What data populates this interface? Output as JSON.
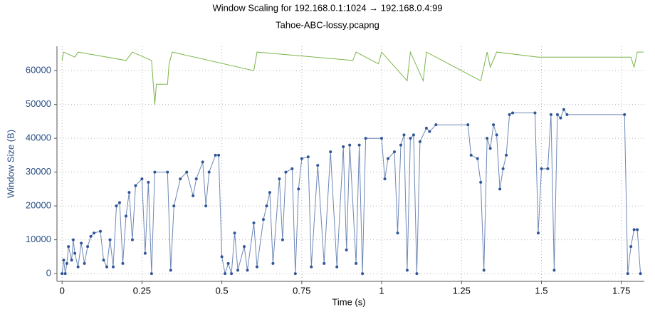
{
  "chart_data": {
    "type": "line",
    "title": "Window Scaling for 192.168.0.1:1024 → 192.168.0.4:99",
    "subtitle": "Tahoe-ABC-lossy.pcapng",
    "x_label": "Time (s)",
    "y_label": "Window Size (B)",
    "xlim": [
      -0.016,
      1.822
    ],
    "ylim": [
      -2300,
      67200
    ],
    "xticks": [
      0,
      0.25,
      0.5,
      0.75,
      1,
      1.25,
      1.5,
      1.75
    ],
    "yticks": [
      0,
      10000,
      20000,
      30000,
      40000,
      50000,
      60000
    ],
    "grid": true,
    "series": [
      {
        "color": "#7ab648",
        "markers": false,
        "x": [
          0,
          0.005,
          0.04,
          0.05,
          0.2,
          0.22,
          0.28,
          0.29,
          0.295,
          0.33,
          0.335,
          0.345,
          0.6,
          0.61,
          0.91,
          0.92,
          0.99,
          1.0,
          1.08,
          1.09,
          1.13,
          1.14,
          1.31,
          1.33,
          1.34,
          1.36,
          1.49,
          1.78,
          1.79,
          1.8,
          1.82
        ],
        "values": [
          63000,
          65500,
          64000,
          65500,
          63000,
          65500,
          63000,
          50000,
          56000,
          56000,
          62000,
          65500,
          60000,
          65500,
          63000,
          65500,
          62000,
          65500,
          57000,
          65500,
          57000,
          65500,
          57000,
          65500,
          61000,
          65500,
          64000,
          64000,
          61000,
          65500,
          65500
        ]
      },
      {
        "color": "#2f5597",
        "markers": true,
        "x": [
          0,
          0.005,
          0.01,
          0.015,
          0.02,
          0.03,
          0.035,
          0.04,
          0.05,
          0.06,
          0.07,
          0.08,
          0.09,
          0.1,
          0.12,
          0.13,
          0.14,
          0.15,
          0.16,
          0.17,
          0.18,
          0.19,
          0.2,
          0.21,
          0.22,
          0.23,
          0.25,
          0.26,
          0.27,
          0.28,
          0.29,
          0.33,
          0.34,
          0.35,
          0.37,
          0.39,
          0.41,
          0.42,
          0.44,
          0.45,
          0.46,
          0.48,
          0.49,
          0.5,
          0.51,
          0.52,
          0.53,
          0.54,
          0.55,
          0.57,
          0.58,
          0.6,
          0.61,
          0.63,
          0.64,
          0.65,
          0.66,
          0.68,
          0.69,
          0.7,
          0.72,
          0.73,
          0.74,
          0.75,
          0.77,
          0.78,
          0.8,
          0.82,
          0.84,
          0.86,
          0.88,
          0.89,
          0.9,
          0.92,
          0.93,
          0.94,
          0.95,
          1.0,
          1.01,
          1.02,
          1.04,
          1.05,
          1.06,
          1.07,
          1.08,
          1.09,
          1.1,
          1.11,
          1.12,
          1.14,
          1.15,
          1.17,
          1.27,
          1.28,
          1.3,
          1.31,
          1.32,
          1.33,
          1.34,
          1.35,
          1.36,
          1.37,
          1.38,
          1.39,
          1.4,
          1.41,
          1.48,
          1.49,
          1.5,
          1.52,
          1.53,
          1.54,
          1.55,
          1.56,
          1.57,
          1.58,
          1.76,
          1.77,
          1.78,
          1.79,
          1.8,
          1.81
        ],
        "values": [
          0,
          4000,
          0,
          3000,
          8000,
          4000,
          10000,
          6000,
          2000,
          9000,
          3000,
          8000,
          11000,
          12000,
          12500,
          4000,
          2000,
          10000,
          2000,
          20000,
          21000,
          3000,
          17000,
          24000,
          10000,
          26000,
          28000,
          6000,
          27000,
          0,
          30000,
          30000,
          1000,
          20000,
          28000,
          30000,
          23000,
          28000,
          33000,
          20000,
          30000,
          35000,
          35000,
          5000,
          0,
          3000,
          0,
          12000,
          1000,
          8000,
          1000,
          15000,
          2000,
          16000,
          20000,
          24000,
          3000,
          28000,
          10000,
          30000,
          31000,
          0,
          25000,
          34000,
          34500,
          2000,
          32000,
          3000,
          36000,
          2000,
          37500,
          7000,
          38000,
          3000,
          38000,
          0,
          40000,
          40000,
          28000,
          34000,
          36000,
          12000,
          38000,
          41000,
          1000,
          40000,
          41000,
          0,
          39000,
          43000,
          42000,
          44000,
          44000,
          35000,
          34000,
          27000,
          1000,
          40000,
          37000,
          44000,
          41000,
          25000,
          31000,
          35000,
          47000,
          47500,
          47500,
          12000,
          31000,
          31000,
          47000,
          1000,
          47000,
          46000,
          48500,
          47000,
          47000,
          0,
          8000,
          13000,
          13000,
          0
        ]
      }
    ]
  }
}
